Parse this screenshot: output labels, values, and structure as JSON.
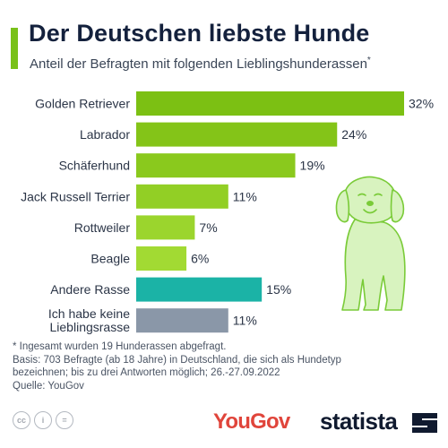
{
  "header": {
    "title": "Der Deutschen liebste Hunde",
    "subtitle": "Anteil der Befragten mit folgenden Lieblingshunderassen",
    "subtitle_mark": "*"
  },
  "colors": {
    "accent": "#79c11a",
    "other": "#1bb3a6",
    "none": "#8a97a8",
    "dog_fill": "#d8f3bf",
    "dog_stroke": "#7acb38"
  },
  "chart_data": {
    "type": "bar",
    "orientation": "horizontal",
    "unit": "%",
    "categories": [
      "Golden Retriever",
      "Labrador",
      "Schäferhund",
      "Jack Russell Terrier",
      "Rottweiler",
      "Beagle",
      "Andere Rasse",
      "Ich habe keine Lieblingsrasse"
    ],
    "category_lines": [
      [
        "Golden Retriever"
      ],
      [
        "Labrador"
      ],
      [
        "Schäferhund"
      ],
      [
        "Jack Russell Terrier"
      ],
      [
        "Rottweiler"
      ],
      [
        "Beagle"
      ],
      [
        "Andere Rasse"
      ],
      [
        "Ich habe keine",
        "Lieblingsrasse"
      ]
    ],
    "values": [
      32,
      24,
      19,
      11,
      7,
      6,
      15,
      11
    ],
    "value_labels": [
      "32%",
      "24%",
      "19%",
      "11%",
      "7%",
      "6%",
      "15%",
      "11%"
    ],
    "bar_colors": [
      "#7cc013",
      "#84c418",
      "#8ac91d",
      "#92cf25",
      "#9bd52d",
      "#a2da33",
      "#1bb3a6",
      "#8a97a8"
    ],
    "xlim": [
      0,
      32
    ],
    "grid": false,
    "legend": "none"
  },
  "footnotes": [
    "* Ingesamt wurden 19 Hunderassen abgefragt.",
    "Basis: 703 Befragte (ab 18 Jahre) in Deutschland, die sich als Hundetyp",
    "bezeichnen; bis zu drei Antworten möglich; 26.-27.09.2022",
    "Quelle: YouGov"
  ],
  "license_icons": [
    "cc-icon",
    "by-icon",
    "nd-icon"
  ],
  "license_icon_text": [
    "cc",
    "i",
    "="
  ],
  "brands": {
    "yougov": "YouGov",
    "statista": "statista"
  }
}
